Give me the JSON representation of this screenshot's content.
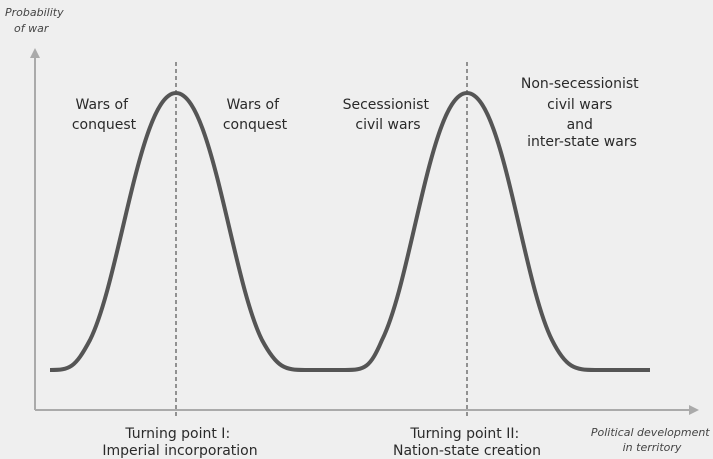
{
  "y_axis_label": [
    "Probability",
    "of war"
  ],
  "x_axis_label": [
    "Political development",
    "in territory"
  ],
  "annotations": [
    [
      "Wars of",
      "conquest"
    ],
    [
      "Wars of",
      "conquest"
    ],
    [
      "Secessionist",
      "civil wars"
    ],
    [
      "Non-secessionist",
      "civil wars",
      "and",
      "inter-state wars"
    ]
  ],
  "turning_points": [
    [
      "Turning point I:",
      "Imperial incorporation"
    ],
    [
      "Turning point II:",
      "Nation-state creation"
    ]
  ]
}
